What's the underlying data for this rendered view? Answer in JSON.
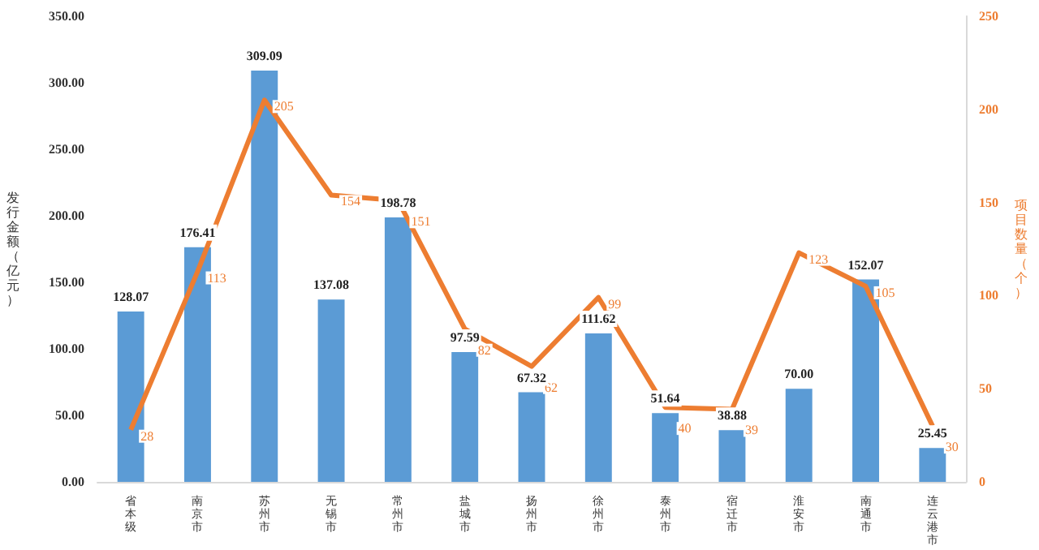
{
  "chart_data": {
    "type": "bar",
    "ylabel": "发行金额（亿元）",
    "y2label": "项目数量（个）",
    "categories": [
      "省本级",
      "南京市",
      "苏州市",
      "无锡市",
      "常州市",
      "盐城市",
      "扬州市",
      "徐州市",
      "泰州市",
      "宿迁市",
      "淮安市",
      "南通市",
      "连云港市"
    ],
    "series": [
      {
        "color": "#5b9bd5",
        "values": [
          128.07,
          176.41,
          309.09,
          137.08,
          198.78,
          97.59,
          67.32,
          111.62,
          51.64,
          38.88,
          70.0,
          152.07,
          25.45
        ],
        "value_labels": [
          "128.07",
          "176.41",
          "309.09",
          "137.08",
          "198.78",
          "97.59",
          "67.32",
          "111.62",
          "51.64",
          "38.88",
          "70.00",
          "152.07",
          "25.45"
        ]
      },
      {
        "type": "line",
        "axis": "y2",
        "color": "#ed7d31",
        "marker": "none",
        "values": [
          28,
          113,
          205,
          154,
          151,
          82,
          62,
          99,
          40,
          39,
          123,
          105,
          30
        ],
        "value_labels": [
          "28",
          "113",
          "205",
          "154",
          "151",
          "82",
          "62",
          "99",
          "40",
          "39",
          "123",
          "105",
          "30"
        ]
      }
    ],
    "ylim": [
      0,
      350
    ],
    "yticks": [
      {
        "value": 0,
        "label": "0.00"
      },
      {
        "value": 50,
        "label": "50.00"
      },
      {
        "value": 100,
        "label": "100.00"
      },
      {
        "value": 150,
        "label": "150.00"
      },
      {
        "value": 200,
        "label": "200.00"
      },
      {
        "value": 250,
        "label": "250.00"
      },
      {
        "value": 300,
        "label": "300.00"
      },
      {
        "value": 350,
        "label": "350.00"
      }
    ],
    "y2lim": [
      0,
      250
    ],
    "y2ticks": [
      0,
      50,
      100,
      150,
      200,
      250
    ],
    "grid": false
  }
}
